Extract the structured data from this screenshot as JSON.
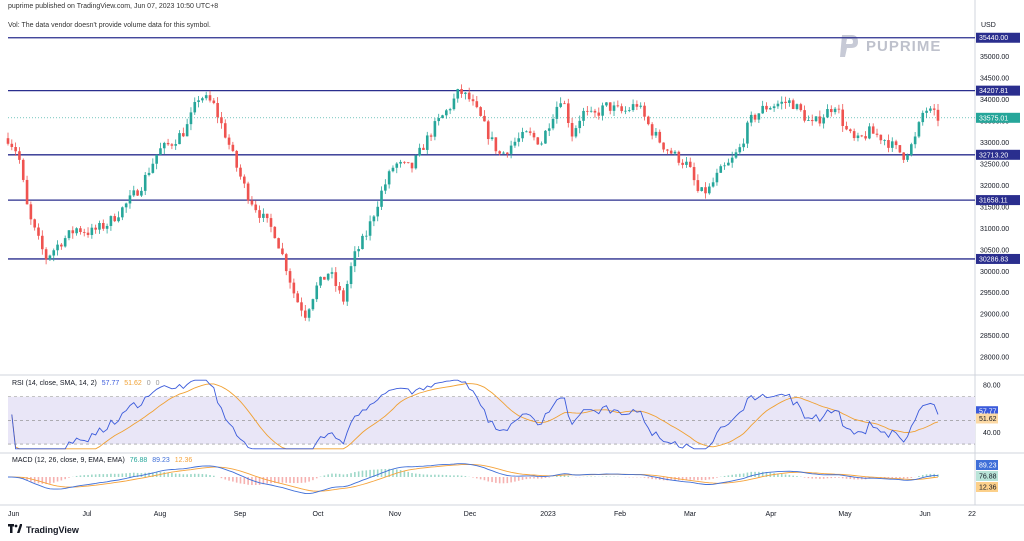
{
  "header": {
    "publisher": "puprime published on TradingView.com, Jun 07, 2023 10:50 UTC+8",
    "volume_note": "Vol: The data vendor doesn't provide volume data for this symbol."
  },
  "branding": {
    "watermark": "PUPRIME",
    "footer": "TradingView"
  },
  "colors": {
    "up": "#26a69a",
    "down": "#ef5350",
    "level": "#2a2e8e",
    "rsi": "#3b5bdb",
    "rsi_sma": "#f0a032",
    "macd": "#3f6fd8",
    "signal": "#f5a33b",
    "band": "#e9e6f7"
  },
  "chart_data": [
    {
      "type": "candlestick",
      "ylabel": "USD",
      "ylim": [
        27700,
        35900
      ],
      "y_ticks": [
        "35000.00",
        "34500.00",
        "34000.00",
        "33500.00",
        "33000.00",
        "32500.00",
        "32000.00",
        "31500.00",
        "31000.00",
        "30500.00",
        "30000.00",
        "29500.00",
        "29000.00",
        "28500.00",
        "28000.00"
      ],
      "x_ticks": [
        "Jun",
        "Jul",
        "Aug",
        "Sep",
        "Oct",
        "Nov",
        "Dec",
        "2023",
        "Feb",
        "Mar",
        "Apr",
        "May",
        "Jun",
        "22"
      ],
      "horizontal_levels": [
        {
          "label": "35440.00",
          "value": 35440
        },
        {
          "label": "34207.81",
          "value": 34207.81
        },
        {
          "label": "32713.20",
          "value": 32713.2
        },
        {
          "label": "31658.11",
          "value": 31658.11
        },
        {
          "label": "30286.83",
          "value": 30286.83
        }
      ],
      "last_price": {
        "label": "33575.01",
        "value": 33575.01
      },
      "close_path": [
        [
          0,
          33100
        ],
        [
          6,
          32750
        ],
        [
          12,
          31300
        ],
        [
          22,
          30300
        ],
        [
          30,
          30650
        ],
        [
          40,
          31000
        ],
        [
          48,
          30900
        ],
        [
          58,
          31100
        ],
        [
          68,
          31500
        ],
        [
          78,
          32000
        ],
        [
          88,
          32800
        ],
        [
          96,
          33000
        ],
        [
          104,
          33300
        ],
        [
          112,
          34100
        ],
        [
          120,
          33900
        ],
        [
          128,
          33100
        ],
        [
          134,
          32400
        ],
        [
          140,
          31800
        ],
        [
          148,
          31300
        ],
        [
          156,
          30900
        ],
        [
          162,
          30200
        ],
        [
          168,
          29400
        ],
        [
          174,
          29000
        ],
        [
          180,
          29600
        ],
        [
          188,
          30000
        ],
        [
          196,
          29300
        ],
        [
          202,
          30300
        ],
        [
          210,
          30900
        ],
        [
          218,
          31800
        ],
        [
          226,
          32500
        ],
        [
          236,
          32400
        ],
        [
          244,
          33000
        ],
        [
          250,
          33400
        ],
        [
          258,
          33800
        ],
        [
          264,
          34200
        ],
        [
          270,
          34000
        ],
        [
          276,
          33600
        ],
        [
          282,
          33100
        ],
        [
          288,
          32700
        ],
        [
          296,
          33000
        ],
        [
          304,
          33200
        ],
        [
          312,
          33000
        ],
        [
          318,
          33600
        ],
        [
          324,
          34100
        ],
        [
          330,
          33200
        ],
        [
          336,
          33700
        ],
        [
          342,
          33600
        ],
        [
          350,
          33850
        ],
        [
          360,
          33700
        ],
        [
          368,
          33900
        ],
        [
          376,
          33300
        ],
        [
          384,
          32900
        ],
        [
          390,
          32700
        ],
        [
          398,
          32450
        ],
        [
          404,
          31800
        ],
        [
          410,
          31900
        ],
        [
          416,
          32300
        ],
        [
          422,
          32500
        ],
        [
          428,
          32850
        ],
        [
          434,
          33500
        ],
        [
          442,
          33800
        ],
        [
          450,
          33900
        ],
        [
          458,
          33950
        ],
        [
          464,
          33700
        ],
        [
          470,
          33400
        ],
        [
          476,
          33600
        ],
        [
          484,
          33900
        ],
        [
          490,
          33300
        ],
        [
          496,
          33000
        ],
        [
          504,
          33250
        ],
        [
          512,
          33100
        ],
        [
          518,
          32900
        ],
        [
          524,
          32700
        ],
        [
          530,
          33000
        ],
        [
          536,
          33800
        ],
        [
          544,
          33575
        ]
      ]
    },
    {
      "type": "line",
      "title": "RSI (14, close, SMA, 14, 2)",
      "ylim": [
        25,
        85
      ],
      "band": [
        30,
        70
      ],
      "y_ticks": [
        "80.00",
        "40.00"
      ],
      "series": [
        {
          "values_label": "57.77",
          "value": 57.77
        },
        {
          "values_label": "51.62",
          "value": 51.62
        }
      ],
      "hidden_values": [
        "0",
        "0"
      ]
    },
    {
      "type": "line",
      "title": "MACD (12, 26, close, 9, EMA, EMA)",
      "series": [
        {
          "values_label": "76.88",
          "value": 76.88
        },
        {
          "values_label": "89.23",
          "value": 89.23
        },
        {
          "values_label": "12.36",
          "value": 12.36
        }
      ]
    }
  ]
}
